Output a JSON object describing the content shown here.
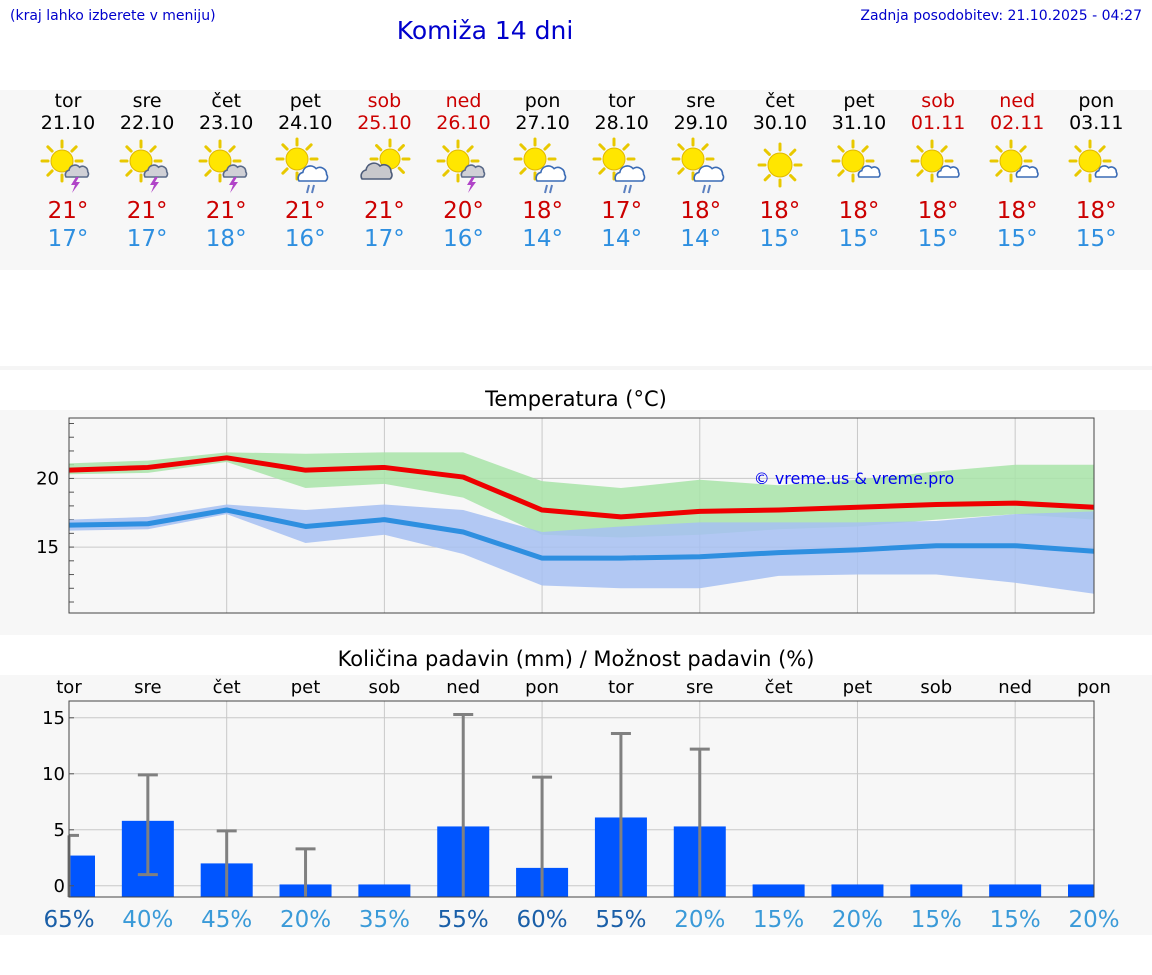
{
  "header": {
    "hint": "(kraj lahko izberete v meniju)",
    "title": "Komiža 14 dni",
    "updated": "Zadnja posodobitev: 21.10.2025 - 04:27"
  },
  "days": [
    {
      "name": "tor",
      "date": "21.10",
      "weekend": false,
      "icon": "sun-cloud-thunder-icon",
      "tmax": "21°",
      "tmin": "17°"
    },
    {
      "name": "sre",
      "date": "22.10",
      "weekend": false,
      "icon": "sun-cloud-thunder-icon",
      "tmax": "21°",
      "tmin": "17°"
    },
    {
      "name": "čet",
      "date": "23.10",
      "weekend": false,
      "icon": "sun-cloud-thunder-icon",
      "tmax": "21°",
      "tmin": "18°"
    },
    {
      "name": "pet",
      "date": "24.10",
      "weekend": false,
      "icon": "sun-cloud-rain-icon",
      "tmax": "21°",
      "tmin": "16°"
    },
    {
      "name": "sob",
      "date": "25.10",
      "weekend": true,
      "icon": "cloud-sun-icon",
      "tmax": "21°",
      "tmin": "17°"
    },
    {
      "name": "ned",
      "date": "26.10",
      "weekend": true,
      "icon": "sun-cloud-thunder-icon",
      "tmax": "20°",
      "tmin": "16°"
    },
    {
      "name": "pon",
      "date": "27.10",
      "weekend": false,
      "icon": "sun-cloud-rain-icon",
      "tmax": "18°",
      "tmin": "14°"
    },
    {
      "name": "tor",
      "date": "28.10",
      "weekend": false,
      "icon": "sun-cloud-rain-icon",
      "tmax": "17°",
      "tmin": "14°"
    },
    {
      "name": "sre",
      "date": "29.10",
      "weekend": false,
      "icon": "sun-cloud-rain-icon",
      "tmax": "18°",
      "tmin": "14°"
    },
    {
      "name": "čet",
      "date": "30.10",
      "weekend": false,
      "icon": "sun-icon",
      "tmax": "18°",
      "tmin": "15°"
    },
    {
      "name": "pet",
      "date": "31.10",
      "weekend": false,
      "icon": "sun-small-cloud-icon",
      "tmax": "18°",
      "tmin": "15°"
    },
    {
      "name": "sob",
      "date": "01.11",
      "weekend": true,
      "icon": "sun-small-cloud-icon",
      "tmax": "18°",
      "tmin": "15°"
    },
    {
      "name": "ned",
      "date": "02.11",
      "weekend": true,
      "icon": "sun-small-cloud-icon",
      "tmax": "18°",
      "tmin": "15°"
    },
    {
      "name": "pon",
      "date": "03.11",
      "weekend": false,
      "icon": "sun-small-cloud-icon",
      "tmax": "18°",
      "tmin": "15°"
    }
  ],
  "chart_data": [
    {
      "type": "line",
      "title": "Temperatura (°C)",
      "watermark": "© vreme.us & vreme.pro",
      "x": [
        "tor",
        "sre",
        "čet",
        "pet",
        "sob",
        "ned",
        "pon",
        "tor",
        "sre",
        "čet",
        "pet",
        "sob",
        "ned",
        "pon"
      ],
      "yticks": [
        "15",
        "20"
      ],
      "ylim": [
        10.2,
        24.4
      ],
      "grid": true,
      "series": [
        {
          "role": "max",
          "color": "#ee0000",
          "values": [
            20.6,
            20.8,
            21.5,
            20.6,
            20.8,
            20.1,
            17.7,
            17.2,
            17.6,
            17.7,
            17.9,
            18.1,
            18.2,
            17.9
          ],
          "band_low": [
            20.3,
            20.4,
            21.2,
            19.3,
            19.6,
            18.6,
            15.9,
            15.7,
            15.9,
            16.3,
            16.5,
            17.0,
            17.4,
            17.0
          ],
          "band_high": [
            21.1,
            21.3,
            21.9,
            21.8,
            21.9,
            21.9,
            19.8,
            19.3,
            19.9,
            19.5,
            19.9,
            20.5,
            21.0,
            21.0
          ],
          "band_color": "#a8e4a8"
        },
        {
          "role": "min",
          "color": "#2e8fe0",
          "values": [
            16.6,
            16.7,
            17.7,
            16.5,
            17.0,
            16.1,
            14.2,
            14.2,
            14.3,
            14.6,
            14.8,
            15.1,
            15.1,
            14.7
          ],
          "band_low": [
            16.2,
            16.3,
            17.4,
            15.3,
            15.9,
            14.5,
            12.2,
            12.0,
            12.0,
            12.9,
            13.0,
            13.0,
            12.4,
            11.6
          ],
          "band_high": [
            17.0,
            17.2,
            18.1,
            17.7,
            18.1,
            17.7,
            16.1,
            16.5,
            16.8,
            16.8,
            16.8,
            16.9,
            17.4,
            17.6
          ],
          "band_color": "#a6c0f2"
        }
      ]
    },
    {
      "type": "bar",
      "title": "Količina padavin (mm) / Možnost padavin (%)",
      "categories": [
        "tor",
        "sre",
        "čet",
        "pet",
        "sob",
        "ned",
        "pon",
        "tor",
        "sre",
        "čet",
        "pet",
        "sob",
        "ned",
        "pon"
      ],
      "values": [
        2.7,
        5.8,
        2.0,
        0.1,
        0.0,
        5.3,
        1.6,
        6.1,
        5.3,
        0.0,
        0.0,
        0.0,
        0.0,
        0.0
      ],
      "error_high": [
        4.5,
        9.9,
        4.9,
        3.3,
        0.0,
        15.3,
        9.7,
        13.6,
        12.2,
        0.0,
        0.0,
        0.0,
        0.0,
        0.0
      ],
      "error_low": [
        0.0,
        1.0,
        0.0,
        0.0,
        0.0,
        0.0,
        0.0,
        0.0,
        0.0,
        0.0,
        0.0,
        0.0,
        0.0,
        0.0
      ],
      "probability": [
        "65%",
        "40%",
        "45%",
        "20%",
        "35%",
        "55%",
        "60%",
        "55%",
        "20%",
        "15%",
        "20%",
        "15%",
        "15%",
        "20%"
      ],
      "prob_values": [
        65,
        40,
        45,
        20,
        35,
        55,
        60,
        55,
        20,
        15,
        20,
        15,
        15,
        20
      ],
      "yticks": [
        "0",
        "5",
        "10",
        "15"
      ],
      "ylim": [
        -1,
        16.5
      ],
      "bar_color": "#0055ff",
      "error_color": "#808080",
      "prob_color_high": "#1a5fa8",
      "prob_color_low": "#3a9ad8",
      "grid": true
    }
  ]
}
